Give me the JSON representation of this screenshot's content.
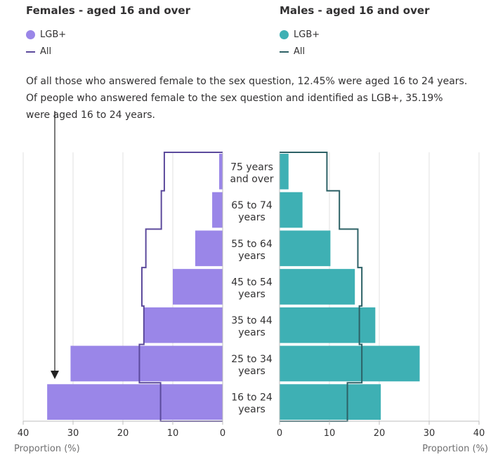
{
  "colors": {
    "female_lgb": "#9a86e8",
    "female_all": "#5c4a9c",
    "male_lgb": "#3eb0b4",
    "male_all": "#2d6166",
    "grid": "#e0e0e0",
    "axis": "#bcbcbd"
  },
  "annotation": {
    "lines": [
      "Of all those who answered female to the sex question, 12.45% were aged 16 to 24 years.",
      "Of people who answered female to the sex question and identified as LGB+, 35.19%",
      "were aged 16 to 24 years."
    ]
  },
  "chart_data": [
    {
      "type": "bar",
      "title": "Females - aged 16 and over",
      "xlabel": "Proportion (%)",
      "xlim": [
        0,
        40
      ],
      "x_ticks": [
        "40",
        "30",
        "20",
        "10",
        "0"
      ],
      "categories": [
        "16 to 24 years",
        "25 to 34 years",
        "35 to 44 years",
        "45 to 54 years",
        "55 to 64 years",
        "65 to 74 years",
        "75 years and over"
      ],
      "series": [
        {
          "name": "LGB+",
          "style": "bar",
          "values": [
            35.19,
            30.5,
            15.9,
            10.0,
            5.5,
            2.1,
            0.7
          ]
        },
        {
          "name": "All",
          "style": "step-line",
          "values": [
            12.45,
            16.7,
            15.8,
            16.2,
            15.4,
            12.3,
            11.7
          ]
        }
      ]
    },
    {
      "type": "bar",
      "title": "Males - aged 16 and over",
      "xlabel": "Proportion (%)",
      "xlim": [
        0,
        40
      ],
      "x_ticks": [
        "0",
        "10",
        "20",
        "30",
        "40"
      ],
      "categories": [
        "16 to 24 years",
        "25 to 34 years",
        "35 to 44 years",
        "45 to 54 years",
        "55 to 64 years",
        "65 to 74 years",
        "75 years and over"
      ],
      "series": [
        {
          "name": "LGB+",
          "style": "bar",
          "values": [
            20.3,
            28.1,
            19.2,
            15.1,
            10.2,
            4.6,
            1.8
          ]
        },
        {
          "name": "All",
          "style": "step-line",
          "values": [
            13.6,
            16.5,
            16.0,
            16.5,
            15.7,
            12.0,
            9.5
          ]
        }
      ]
    }
  ],
  "category_labels": [
    [
      "16 to 24",
      "years"
    ],
    [
      "25 to 34",
      "years"
    ],
    [
      "35 to 44",
      "years"
    ],
    [
      "45 to 54",
      "years"
    ],
    [
      "55 to 64",
      "years"
    ],
    [
      "65 to 74",
      "years"
    ],
    [
      "75 years",
      "and over"
    ]
  ]
}
